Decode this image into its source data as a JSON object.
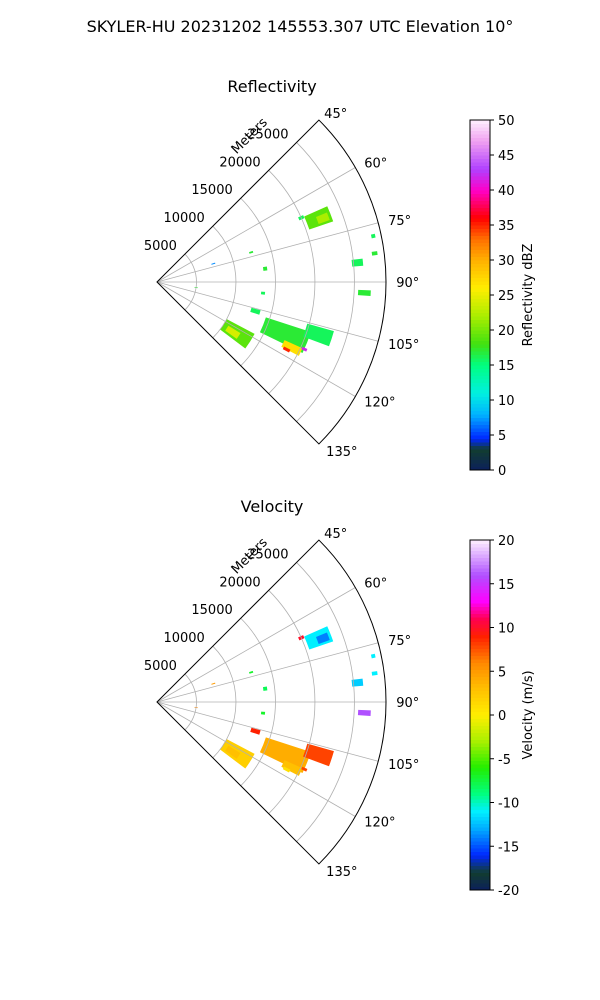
{
  "figure": {
    "suptitle": "SKYLER-HU  20231202  145553.307 UTC Elevation 10°"
  },
  "chart_data": [
    {
      "type": "heatmap",
      "title": "Reflectivity",
      "projection": "polar sector",
      "theta_range_deg": [
        45,
        135
      ],
      "theta_ticks": [
        "45°",
        "60°",
        "75°",
        "90°",
        "105°",
        "120°",
        "135°"
      ],
      "r_label": "Meters",
      "r_ticks": [
        5000,
        10000,
        15000,
        20000,
        25000
      ],
      "r_max": 29000,
      "grid": true,
      "colorbar": {
        "label": "Reflectivity dBZ",
        "range": [
          0,
          50
        ],
        "ticks": [
          0,
          5,
          10,
          15,
          20,
          25,
          30,
          35,
          40,
          45,
          50
        ]
      },
      "cells": [
        {
          "theta": 68.5,
          "r": 22000,
          "dtheta": 5.0,
          "dr": 3200,
          "value": 19
        },
        {
          "theta": 69.0,
          "r": 22500,
          "dtheta": 2.5,
          "dr": 1500,
          "value": 22
        },
        {
          "theta": 66.0,
          "r": 20000,
          "dtheta": 1.2,
          "dr": 700,
          "value": 16
        },
        {
          "theta": 84.5,
          "r": 25500,
          "dtheta": 2.0,
          "dr": 1400,
          "value": 16
        },
        {
          "theta": 82.5,
          "r": 27800,
          "dtheta": 1.0,
          "dr": 700,
          "value": 17
        },
        {
          "theta": 93.0,
          "r": 26300,
          "dtheta": 1.5,
          "dr": 1600,
          "value": 17
        },
        {
          "theta": 78.0,
          "r": 28000,
          "dtheta": 1.0,
          "dr": 500,
          "value": 16
        },
        {
          "theta": 72.0,
          "r": 7500,
          "dtheta": 1.0,
          "dr": 500,
          "value": 7
        },
        {
          "theta": 72.5,
          "r": 12500,
          "dtheta": 1.0,
          "dr": 500,
          "value": 17
        },
        {
          "theta": 83.0,
          "r": 13800,
          "dtheta": 2.0,
          "dr": 500,
          "value": 17
        },
        {
          "theta": 96.0,
          "r": 13500,
          "dtheta": 1.5,
          "dr": 500,
          "value": 16
        },
        {
          "theta": 98.0,
          "r": 5000,
          "dtheta": 1.0,
          "dr": 400,
          "value": 17
        },
        {
          "theta": 122.5,
          "r": 12000,
          "dtheta": 9.0,
          "dr": 4000,
          "value": 19
        },
        {
          "theta": 123.5,
          "r": 11500,
          "dtheta": 4.0,
          "dr": 1800,
          "value": 24
        },
        {
          "theta": 112.0,
          "r": 17500,
          "dtheta": 8.0,
          "dr": 6000,
          "value": 17
        },
        {
          "theta": 116.0,
          "r": 19000,
          "dtheta": 3.0,
          "dr": 2500,
          "value": 27
        },
        {
          "theta": 117.5,
          "r": 18500,
          "dtheta": 1.2,
          "dr": 900,
          "value": 35
        },
        {
          "theta": 114.5,
          "r": 20500,
          "dtheta": 1.0,
          "dr": 700,
          "value": 42
        },
        {
          "theta": 108.0,
          "r": 21500,
          "dtheta": 5.0,
          "dr": 3500,
          "value": 16
        },
        {
          "theta": 106.5,
          "r": 13000,
          "dtheta": 2.5,
          "dr": 1200,
          "value": 16
        }
      ]
    },
    {
      "type": "heatmap",
      "title": "Velocity",
      "projection": "polar sector",
      "theta_range_deg": [
        45,
        135
      ],
      "theta_ticks": [
        "45°",
        "60°",
        "75°",
        "90°",
        "105°",
        "120°",
        "135°"
      ],
      "r_label": "Meters",
      "r_ticks": [
        5000,
        10000,
        15000,
        20000,
        25000
      ],
      "r_max": 29000,
      "grid": true,
      "colorbar": {
        "label": "Velocity (m/s)",
        "range": [
          -20,
          20
        ],
        "ticks": [
          -20,
          -15,
          -10,
          -5,
          0,
          5,
          10,
          15,
          20
        ]
      },
      "cells": [
        {
          "theta": 68.5,
          "r": 22000,
          "dtheta": 5.0,
          "dr": 3200,
          "value": -11
        },
        {
          "theta": 69.0,
          "r": 22500,
          "dtheta": 2.5,
          "dr": 1500,
          "value": -14
        },
        {
          "theta": 66.0,
          "r": 20000,
          "dtheta": 1.2,
          "dr": 700,
          "value": 10
        },
        {
          "theta": 84.5,
          "r": 25500,
          "dtheta": 2.0,
          "dr": 1400,
          "value": -12
        },
        {
          "theta": 82.5,
          "r": 27800,
          "dtheta": 1.0,
          "dr": 700,
          "value": -11
        },
        {
          "theta": 93.0,
          "r": 26300,
          "dtheta": 1.5,
          "dr": 1600,
          "value": 16
        },
        {
          "theta": 78.0,
          "r": 28000,
          "dtheta": 1.0,
          "dr": 500,
          "value": -11
        },
        {
          "theta": 72.0,
          "r": 7500,
          "dtheta": 1.0,
          "dr": 500,
          "value": 5
        },
        {
          "theta": 72.5,
          "r": 12500,
          "dtheta": 1.0,
          "dr": 500,
          "value": -7
        },
        {
          "theta": 83.0,
          "r": 13800,
          "dtheta": 2.0,
          "dr": 500,
          "value": -8
        },
        {
          "theta": 96.0,
          "r": 13500,
          "dtheta": 1.5,
          "dr": 500,
          "value": -7
        },
        {
          "theta": 98.0,
          "r": 5000,
          "dtheta": 1.0,
          "dr": 400,
          "value": 6
        },
        {
          "theta": 122.5,
          "r": 12000,
          "dtheta": 9.0,
          "dr": 4000,
          "value": 2
        },
        {
          "theta": 123.5,
          "r": 11500,
          "dtheta": 4.0,
          "dr": 1800,
          "value": 3
        },
        {
          "theta": 112.0,
          "r": 17500,
          "dtheta": 8.0,
          "dr": 6000,
          "value": 4
        },
        {
          "theta": 116.0,
          "r": 19000,
          "dtheta": 3.0,
          "dr": 2500,
          "value": 3
        },
        {
          "theta": 117.5,
          "r": 18500,
          "dtheta": 1.2,
          "dr": 900,
          "value": 1
        },
        {
          "theta": 114.5,
          "r": 20500,
          "dtheta": 1.0,
          "dr": 700,
          "value": 8
        },
        {
          "theta": 108.0,
          "r": 21500,
          "dtheta": 5.0,
          "dr": 3500,
          "value": 8
        },
        {
          "theta": 106.5,
          "r": 13000,
          "dtheta": 2.5,
          "dr": 1200,
          "value": 9
        }
      ]
    }
  ]
}
